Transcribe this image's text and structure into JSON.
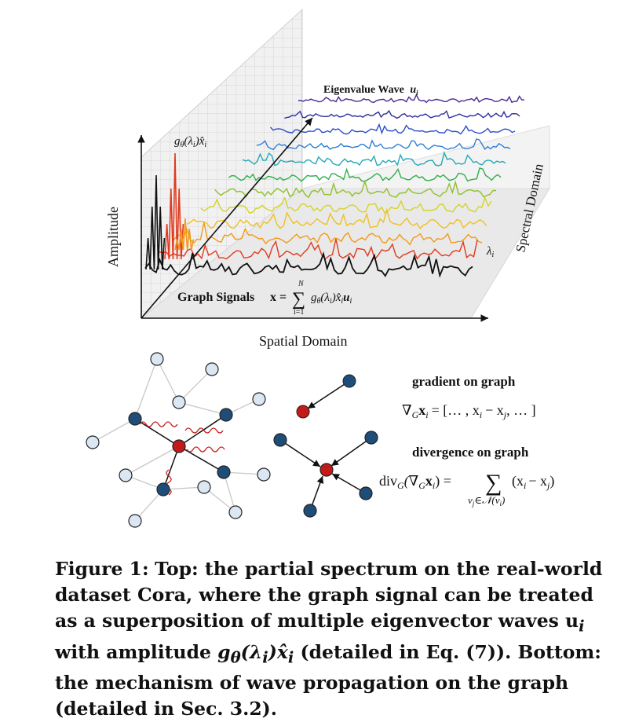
{
  "top_panel": {
    "wave_label_text": "Eigenvalue Wave",
    "wave_label_symbol": "u",
    "wave_label_sub": "i",
    "amplitude_func": "g",
    "amplitude_func_sub": "θ",
    "amplitude_arg": "(λ",
    "amplitude_arg_sub": "i",
    "amplitude_tail": ")",
    "amplitude_hat": "x̂",
    "amplitude_hat_sub": "i",
    "y_axis_label": "Amplitude",
    "x_axis_label": "Spatial Domain",
    "z_axis_label": "Spectral Domain",
    "lambda_label": "λ",
    "lambda_sub": "i",
    "graph_signal_label": "Graph Signals",
    "formula_lhs": "x =",
    "sum_symbol": "∑",
    "sum_upper": "N",
    "sum_lower": "i=1",
    "formula_rhs": "g",
    "formula_rhs_sub": "θ",
    "formula_rhs_tail": "(λ",
    "formula_rhs_tail2": ")x̂",
    "formula_rhs_u": "u"
  },
  "wave_colors": [
    "#4b2a8f",
    "#2f2f9e",
    "#2a4fc8",
    "#2f7fd6",
    "#25a8b5",
    "#2fae4a",
    "#8fc02a",
    "#d6d22a",
    "#f0c020",
    "#f29a1a",
    "#e03a1f",
    "#111111"
  ],
  "bottom_panel": {
    "gradient_title": "gradient on graph",
    "gradient_formula": "∇",
    "gradient_formula_sub": "G",
    "gradient_formula_x": "x",
    "gradient_formula_xsub": "i",
    "gradient_formula_rhs": "= [… , x",
    "gradient_formula_rhs2": "− x",
    "gradient_formula_rhs2sub": "j",
    "gradient_formula_end": ", … ]",
    "divergence_title": "divergence on graph",
    "div_lhs": "div",
    "div_lhs_sub": "G",
    "div_arg": "(∇",
    "div_arg_sub": "G",
    "div_arg_x": "x",
    "div_arg_xsub": "i",
    "div_arg_end": ") =",
    "div_sum": "∑",
    "div_rhs": "(x",
    "div_rhs_i": "i",
    "div_rhs_mid": "− x",
    "div_rhs_j": "j",
    "div_rhs_end": ")",
    "div_sum_lower": "v",
    "div_sum_lower_sub": "j",
    "div_sum_lower_rest": "∈𝒩(v",
    "div_sum_lower_rest_sub": "i",
    "div_sum_lower_end": ")"
  },
  "node_colors": {
    "red": "#c41a1a",
    "dark": "#1f4d7a",
    "light": "#dbe8f4"
  },
  "caption": {
    "label": "Figure 1:",
    "text": "Top: the partial spectrum on the real-world dataset Cora, where the graph signal can be treated as a superposition of multiple eigenvector waves u",
    "sub_i": "i",
    "text2": "with amplitude ",
    "amp": "g",
    "amp_sub": "θ",
    "amp2": "(λ",
    "amp2_sub": "i",
    "amp3": ")x̂",
    "amp3_sub": "i",
    "text3": "(detailed in Eq. (7)). Bottom: the mechanism of wave propagation on the graph (detailed in Sec. 3.2)."
  }
}
